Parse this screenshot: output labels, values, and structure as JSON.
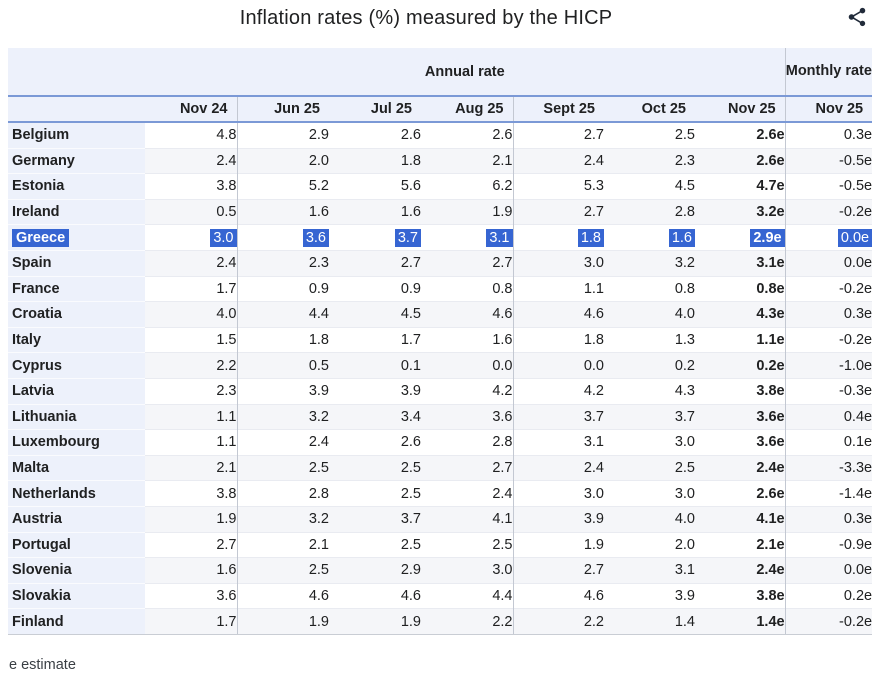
{
  "header": {
    "title": "Inflation rates (%) measured by the HICP",
    "share_icon": "share-icon"
  },
  "chart_data": {
    "type": "table",
    "title": "Inflation rates (%) measured by the HICP",
    "column_groups": {
      "annual": "Annual rate",
      "monthly": "Monthly rate"
    },
    "annual_column_count": 7,
    "columns": [
      "Nov 24",
      "Jun 25",
      "Jul 25",
      "Aug 25",
      "Sept 25",
      "Oct 25",
      "Nov 25",
      "Nov 25"
    ],
    "bold_column_index": 6,
    "divider_after_column_indexes": [
      0,
      3,
      6
    ],
    "rows": [
      {
        "country": "Belgium",
        "values": [
          "4.8",
          "2.9",
          "2.6",
          "2.6",
          "2.7",
          "2.5",
          "2.6e",
          "0.3e"
        ]
      },
      {
        "country": "Germany",
        "values": [
          "2.4",
          "2.0",
          "1.8",
          "2.1",
          "2.4",
          "2.3",
          "2.6e",
          "-0.5e"
        ]
      },
      {
        "country": "Estonia",
        "values": [
          "3.8",
          "5.2",
          "5.6",
          "6.2",
          "5.3",
          "4.5",
          "4.7e",
          "-0.5e"
        ]
      },
      {
        "country": "Ireland",
        "values": [
          "0.5",
          "1.6",
          "1.6",
          "1.9",
          "2.7",
          "2.8",
          "3.2e",
          "-0.2e"
        ]
      },
      {
        "country": "Greece",
        "values": [
          "3.0",
          "3.6",
          "3.7",
          "3.1",
          "1.8",
          "1.6",
          "2.9e",
          "0.0e"
        ]
      },
      {
        "country": "Spain",
        "values": [
          "2.4",
          "2.3",
          "2.7",
          "2.7",
          "3.0",
          "3.2",
          "3.1e",
          "0.0e"
        ]
      },
      {
        "country": "France",
        "values": [
          "1.7",
          "0.9",
          "0.9",
          "0.8",
          "1.1",
          "0.8",
          "0.8e",
          "-0.2e"
        ]
      },
      {
        "country": "Croatia",
        "values": [
          "4.0",
          "4.4",
          "4.5",
          "4.6",
          "4.6",
          "4.0",
          "4.3e",
          "0.3e"
        ]
      },
      {
        "country": "Italy",
        "values": [
          "1.5",
          "1.8",
          "1.7",
          "1.6",
          "1.8",
          "1.3",
          "1.1e",
          "-0.2e"
        ]
      },
      {
        "country": "Cyprus",
        "values": [
          "2.2",
          "0.5",
          "0.1",
          "0.0",
          "0.0",
          "0.2",
          "0.2e",
          "-1.0e"
        ]
      },
      {
        "country": "Latvia",
        "values": [
          "2.3",
          "3.9",
          "3.9",
          "4.2",
          "4.2",
          "4.3",
          "3.8e",
          "-0.3e"
        ]
      },
      {
        "country": "Lithuania",
        "values": [
          "1.1",
          "3.2",
          "3.4",
          "3.6",
          "3.7",
          "3.7",
          "3.6e",
          "0.4e"
        ]
      },
      {
        "country": "Luxembourg",
        "values": [
          "1.1",
          "2.4",
          "2.6",
          "2.8",
          "3.1",
          "3.0",
          "3.6e",
          "0.1e"
        ]
      },
      {
        "country": "Malta",
        "values": [
          "2.1",
          "2.5",
          "2.5",
          "2.7",
          "2.4",
          "2.5",
          "2.4e",
          "-3.3e"
        ]
      },
      {
        "country": "Netherlands",
        "values": [
          "3.8",
          "2.8",
          "2.5",
          "2.4",
          "3.0",
          "3.0",
          "2.6e",
          "-1.4e"
        ]
      },
      {
        "country": "Austria",
        "values": [
          "1.9",
          "3.2",
          "3.7",
          "4.1",
          "3.9",
          "4.0",
          "4.1e",
          "0.3e"
        ]
      },
      {
        "country": "Portugal",
        "values": [
          "2.7",
          "2.1",
          "2.5",
          "2.5",
          "1.9",
          "2.0",
          "2.1e",
          "-0.9e"
        ]
      },
      {
        "country": "Slovenia",
        "values": [
          "1.6",
          "2.5",
          "2.9",
          "3.0",
          "2.7",
          "3.1",
          "2.4e",
          "0.0e"
        ]
      },
      {
        "country": "Slovakia",
        "values": [
          "3.6",
          "4.6",
          "4.6",
          "4.4",
          "4.6",
          "3.9",
          "3.8e",
          "0.2e"
        ]
      },
      {
        "country": "Finland",
        "values": [
          "1.7",
          "1.9",
          "1.9",
          "2.2",
          "2.2",
          "1.4",
          "1.4e",
          "-0.2e"
        ]
      }
    ],
    "selected_row": "Greece",
    "footnote": "e estimate",
    "colors": {
      "selection_highlight": "#3665d2",
      "selection_text": "#ffffff",
      "header_bg": "#edf1fb",
      "accent_line_blue": "#7b99d6",
      "row_alt_bg": "#f5f6f9",
      "grid_line": "#c3c8d2",
      "text": "#202122"
    },
    "layout": {
      "grid": "on",
      "value_alignment": "right"
    }
  }
}
